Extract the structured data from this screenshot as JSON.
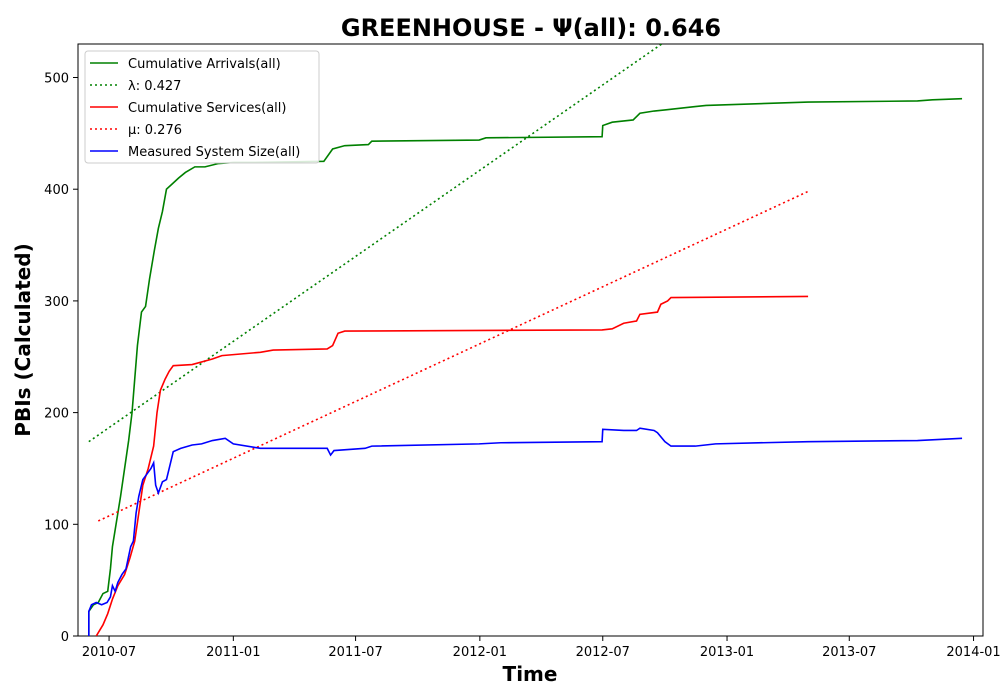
{
  "chart_data": {
    "type": "line",
    "title": "GREENHOUSE -  Ψ(all): 0.646",
    "xlabel": "Time",
    "ylabel": "PBIs (Calculated)",
    "xlim": [
      "2010-05-16",
      "2014-01-15"
    ],
    "ylim": [
      0,
      530
    ],
    "x_ticks": [
      "2010-07",
      "2011-01",
      "2011-07",
      "2012-01",
      "2012-07",
      "2013-01",
      "2013-07",
      "2014-01"
    ],
    "y_ticks": [
      0,
      100,
      200,
      300,
      400,
      500
    ],
    "grid": false,
    "legend_position": "top-left",
    "series": [
      {
        "name": "Cumulative Arrivals(all)",
        "color": "#008000",
        "style": "solid",
        "points": [
          [
            "2010-06-01",
            0
          ],
          [
            "2010-06-01",
            22
          ],
          [
            "2010-06-08",
            28
          ],
          [
            "2010-06-15",
            30
          ],
          [
            "2010-06-22",
            38
          ],
          [
            "2010-06-29",
            40
          ],
          [
            "2010-07-03",
            60
          ],
          [
            "2010-07-06",
            80
          ],
          [
            "2010-07-10",
            95
          ],
          [
            "2010-07-14",
            110
          ],
          [
            "2010-07-18",
            125
          ],
          [
            "2010-07-24",
            150
          ],
          [
            "2010-07-30",
            175
          ],
          [
            "2010-08-04",
            200
          ],
          [
            "2010-08-08",
            230
          ],
          [
            "2010-08-12",
            260
          ],
          [
            "2010-08-18",
            290
          ],
          [
            "2010-08-24",
            295
          ],
          [
            "2010-08-30",
            320
          ],
          [
            "2010-09-06",
            345
          ],
          [
            "2010-09-12",
            365
          ],
          [
            "2010-09-18",
            380
          ],
          [
            "2010-09-24",
            400
          ],
          [
            "2010-10-03",
            405
          ],
          [
            "2010-10-12",
            410
          ],
          [
            "2010-10-22",
            415
          ],
          [
            "2010-11-05",
            420
          ],
          [
            "2010-11-20",
            420
          ],
          [
            "2010-12-10",
            423
          ],
          [
            "2011-01-01",
            424
          ],
          [
            "2011-02-01",
            424
          ],
          [
            "2011-05-15",
            425
          ],
          [
            "2011-05-28",
            436
          ],
          [
            "2011-06-15",
            439
          ],
          [
            "2011-07-20",
            440
          ],
          [
            "2011-07-25",
            443
          ],
          [
            "2011-12-31",
            444
          ],
          [
            "2012-01-10",
            446
          ],
          [
            "2012-06-30",
            447
          ],
          [
            "2012-07-01",
            457
          ],
          [
            "2012-07-15",
            460
          ],
          [
            "2012-08-15",
            462
          ],
          [
            "2012-08-25",
            468
          ],
          [
            "2012-09-15",
            470
          ],
          [
            "2012-10-01",
            471
          ],
          [
            "2012-11-15",
            474
          ],
          [
            "2012-12-01",
            475
          ],
          [
            "2013-05-01",
            478
          ],
          [
            "2013-10-10",
            479
          ],
          [
            "2013-11-01",
            480
          ],
          [
            "2013-12-15",
            481
          ]
        ]
      },
      {
        "name": "λ: 0.427",
        "color": "#008000",
        "style": "dotted",
        "points": [
          [
            "2010-06-01",
            174
          ],
          [
            "2012-10-01",
            532
          ]
        ]
      },
      {
        "name": "Cumulative Services(all)",
        "color": "#ff0000",
        "style": "solid",
        "points": [
          [
            "2010-06-12",
            0
          ],
          [
            "2010-06-15",
            3
          ],
          [
            "2010-06-22",
            10
          ],
          [
            "2010-06-29",
            20
          ],
          [
            "2010-07-06",
            33
          ],
          [
            "2010-07-14",
            45
          ],
          [
            "2010-07-24",
            55
          ],
          [
            "2010-08-01",
            70
          ],
          [
            "2010-08-08",
            85
          ],
          [
            "2010-08-14",
            110
          ],
          [
            "2010-08-20",
            135
          ],
          [
            "2010-08-28",
            150
          ],
          [
            "2010-09-05",
            170
          ],
          [
            "2010-09-10",
            200
          ],
          [
            "2010-09-15",
            220
          ],
          [
            "2010-09-22",
            230
          ],
          [
            "2010-09-28",
            237
          ],
          [
            "2010-10-04",
            242
          ],
          [
            "2010-11-01",
            243
          ],
          [
            "2010-12-01",
            248
          ],
          [
            "2010-12-15",
            251
          ],
          [
            "2011-02-10",
            254
          ],
          [
            "2011-03-01",
            256
          ],
          [
            "2011-05-20",
            257
          ],
          [
            "2011-05-28",
            260
          ],
          [
            "2011-06-05",
            271
          ],
          [
            "2011-06-15",
            273
          ],
          [
            "2012-06-30",
            274
          ],
          [
            "2012-07-15",
            275
          ],
          [
            "2012-08-01",
            280
          ],
          [
            "2012-08-20",
            282
          ],
          [
            "2012-08-25",
            288
          ],
          [
            "2012-09-20",
            290
          ],
          [
            "2012-09-25",
            297
          ],
          [
            "2012-10-05",
            300
          ],
          [
            "2012-10-10",
            303
          ],
          [
            "2013-05-01",
            304
          ]
        ]
      },
      {
        "name": "μ: 0.276",
        "color": "#ff0000",
        "style": "dotted",
        "points": [
          [
            "2010-06-15",
            103
          ],
          [
            "2013-05-01",
            398
          ]
        ]
      },
      {
        "name": "Measured System Size(all)",
        "color": "#0000ff",
        "style": "solid",
        "points": [
          [
            "2010-06-01",
            0
          ],
          [
            "2010-06-01",
            22
          ],
          [
            "2010-06-05",
            28
          ],
          [
            "2010-06-12",
            30
          ],
          [
            "2010-06-20",
            28
          ],
          [
            "2010-06-28",
            30
          ],
          [
            "2010-07-03",
            35
          ],
          [
            "2010-07-06",
            45
          ],
          [
            "2010-07-10",
            40
          ],
          [
            "2010-07-14",
            48
          ],
          [
            "2010-07-20",
            55
          ],
          [
            "2010-07-26",
            60
          ],
          [
            "2010-08-02",
            80
          ],
          [
            "2010-08-06",
            85
          ],
          [
            "2010-08-10",
            110
          ],
          [
            "2010-08-14",
            125
          ],
          [
            "2010-08-20",
            140
          ],
          [
            "2010-08-26",
            145
          ],
          [
            "2010-09-01",
            150
          ],
          [
            "2010-09-05",
            155
          ],
          [
            "2010-09-08",
            135
          ],
          [
            "2010-09-12",
            128
          ],
          [
            "2010-09-18",
            138
          ],
          [
            "2010-09-24",
            140
          ],
          [
            "2010-09-28",
            150
          ],
          [
            "2010-10-04",
            165
          ],
          [
            "2010-10-15",
            168
          ],
          [
            "2010-11-01",
            171
          ],
          [
            "2010-11-15",
            172
          ],
          [
            "2010-12-01",
            175
          ],
          [
            "2010-12-20",
            177
          ],
          [
            "2011-01-01",
            172
          ],
          [
            "2011-02-10",
            168
          ],
          [
            "2011-05-20",
            168
          ],
          [
            "2011-05-25",
            162
          ],
          [
            "2011-05-30",
            166
          ],
          [
            "2011-07-15",
            168
          ],
          [
            "2011-07-25",
            170
          ],
          [
            "2011-12-31",
            172
          ],
          [
            "2012-02-01",
            173
          ],
          [
            "2012-06-30",
            174
          ],
          [
            "2012-07-01",
            185
          ],
          [
            "2012-08-01",
            184
          ],
          [
            "2012-08-20",
            184
          ],
          [
            "2012-08-25",
            186
          ],
          [
            "2012-09-15",
            184
          ],
          [
            "2012-09-20",
            182
          ],
          [
            "2012-10-01",
            174
          ],
          [
            "2012-10-10",
            170
          ],
          [
            "2012-11-15",
            170
          ],
          [
            "2012-12-15",
            172
          ],
          [
            "2013-05-01",
            174
          ],
          [
            "2013-10-10",
            175
          ],
          [
            "2013-12-15",
            177
          ]
        ]
      }
    ]
  }
}
